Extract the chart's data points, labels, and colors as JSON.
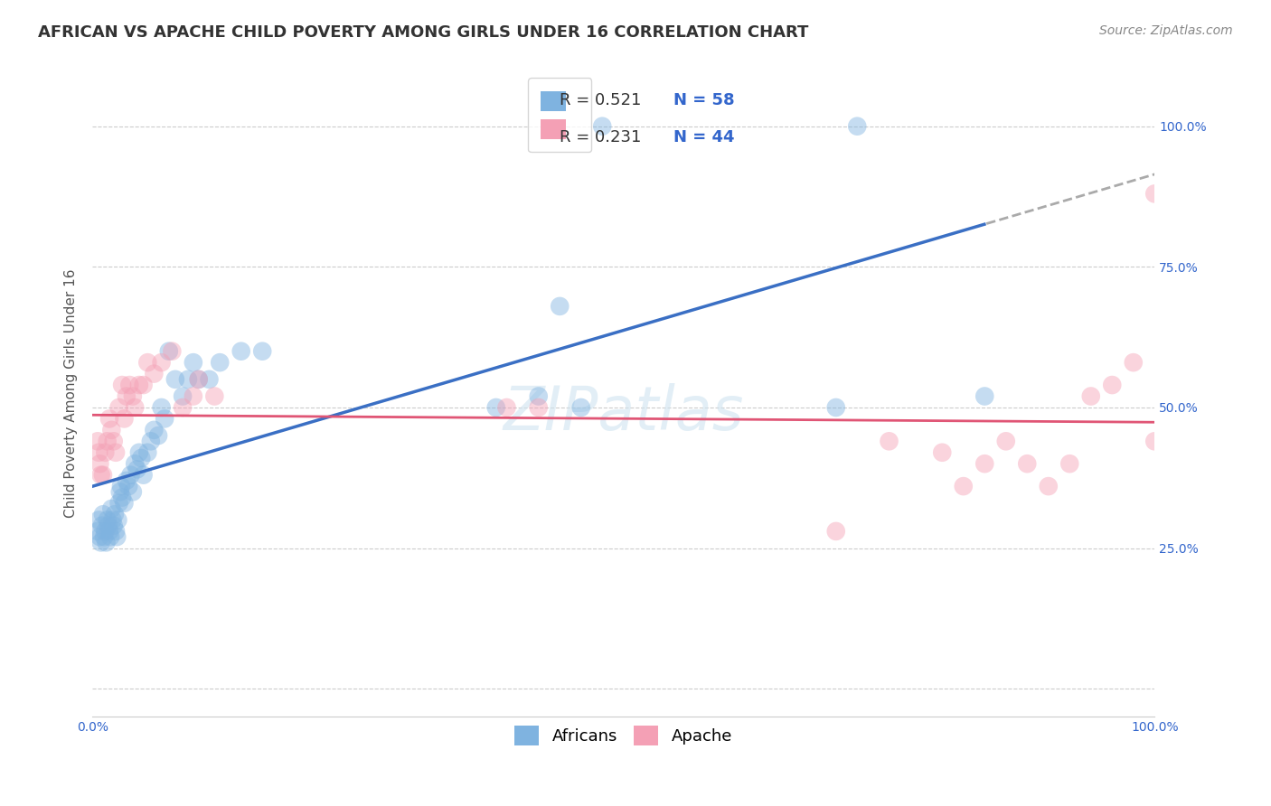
{
  "title": "AFRICAN VS APACHE CHILD POVERTY AMONG GIRLS UNDER 16 CORRELATION CHART",
  "source": "Source: ZipAtlas.com",
  "ylabel": "Child Poverty Among Girls Under 16",
  "xlabel": "",
  "background_color": "#ffffff",
  "plot_bg_color": "#ffffff",
  "africans_color": "#7fb3e0",
  "apache_color": "#f4a0b5",
  "africans_line_color": "#3a6fc4",
  "apache_line_color": "#e05575",
  "dashed_line_color": "#aaaaaa",
  "grid_color": "#cccccc",
  "r_value_color": "#3366cc",
  "ytick_color": "#3366cc",
  "xtick_color": "#3366cc",
  "xlim": [
    0,
    1
  ],
  "ylim": [
    -0.05,
    1.1
  ],
  "xticks": [
    0,
    0.25,
    0.5,
    0.75,
    1.0
  ],
  "yticks": [
    0,
    0.25,
    0.5,
    0.75,
    1.0
  ],
  "xticklabels_left": [
    "0.0%",
    "",
    "",
    "",
    ""
  ],
  "xticklabels_right": [
    "",
    "",
    "",
    "",
    "100.0%"
  ],
  "yticklabels_right": [
    "",
    "25.0%",
    "50.0%",
    "75.0%",
    "100.0%"
  ],
  "africans_x": [
    0.005,
    0.006,
    0.007,
    0.008,
    0.009,
    0.01,
    0.011,
    0.012,
    0.013,
    0.014,
    0.015,
    0.016,
    0.017,
    0.018,
    0.019,
    0.02,
    0.021,
    0.022,
    0.023,
    0.024,
    0.025,
    0.026,
    0.027,
    0.028,
    0.03,
    0.032,
    0.034,
    0.036,
    0.038,
    0.04,
    0.042,
    0.044,
    0.046,
    0.048,
    0.052,
    0.055,
    0.058,
    0.062,
    0.065,
    0.068,
    0.072,
    0.078,
    0.085,
    0.09,
    0.095,
    0.1,
    0.11,
    0.12,
    0.14,
    0.16,
    0.38,
    0.42,
    0.44,
    0.46,
    0.48,
    0.7,
    0.72,
    0.84
  ],
  "africans_y": [
    0.28,
    0.3,
    0.27,
    0.26,
    0.29,
    0.31,
    0.27,
    0.28,
    0.26,
    0.3,
    0.29,
    0.28,
    0.27,
    0.32,
    0.3,
    0.29,
    0.31,
    0.28,
    0.27,
    0.3,
    0.33,
    0.35,
    0.36,
    0.34,
    0.33,
    0.37,
    0.36,
    0.38,
    0.35,
    0.4,
    0.39,
    0.42,
    0.41,
    0.38,
    0.42,
    0.44,
    0.46,
    0.45,
    0.5,
    0.48,
    0.6,
    0.55,
    0.52,
    0.55,
    0.58,
    0.55,
    0.55,
    0.58,
    0.6,
    0.6,
    0.5,
    0.52,
    0.68,
    0.5,
    1.0,
    0.5,
    1.0,
    0.52
  ],
  "apache_x": [
    0.005,
    0.006,
    0.007,
    0.008,
    0.01,
    0.012,
    0.014,
    0.016,
    0.018,
    0.02,
    0.022,
    0.025,
    0.028,
    0.03,
    0.032,
    0.035,
    0.038,
    0.04,
    0.044,
    0.048,
    0.052,
    0.058,
    0.065,
    0.075,
    0.085,
    0.095,
    0.1,
    0.115,
    0.39,
    0.42,
    0.7,
    0.75,
    0.8,
    0.82,
    0.84,
    0.86,
    0.88,
    0.9,
    0.92,
    0.94,
    0.96,
    0.98,
    1.0,
    1.0
  ],
  "apache_y": [
    0.44,
    0.42,
    0.4,
    0.38,
    0.38,
    0.42,
    0.44,
    0.48,
    0.46,
    0.44,
    0.42,
    0.5,
    0.54,
    0.48,
    0.52,
    0.54,
    0.52,
    0.5,
    0.54,
    0.54,
    0.58,
    0.56,
    0.58,
    0.6,
    0.5,
    0.52,
    0.55,
    0.52,
    0.5,
    0.5,
    0.28,
    0.44,
    0.42,
    0.36,
    0.4,
    0.44,
    0.4,
    0.36,
    0.4,
    0.52,
    0.54,
    0.58,
    0.88,
    0.44
  ],
  "marker_size": 220,
  "marker_alpha": 0.45,
  "title_fontsize": 13,
  "label_fontsize": 11,
  "tick_fontsize": 10,
  "legend_fontsize": 13,
  "source_fontsize": 10
}
